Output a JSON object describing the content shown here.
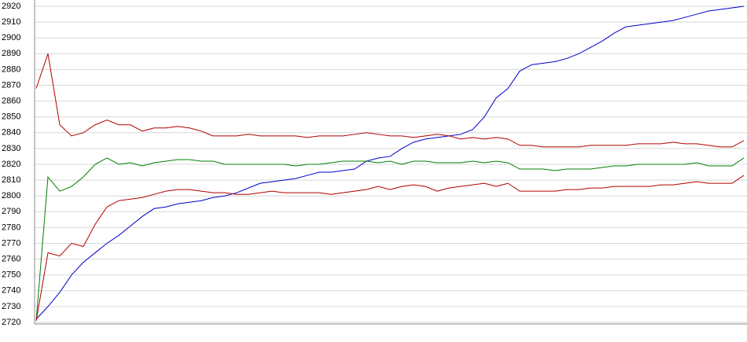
{
  "chart_data": {
    "type": "line",
    "ylim": [
      2720,
      2920
    ],
    "yticks": [
      2720,
      2730,
      2740,
      2750,
      2760,
      2770,
      2780,
      2790,
      2800,
      2810,
      2820,
      2830,
      2840,
      2850,
      2860,
      2870,
      2880,
      2890,
      2900,
      2910,
      2920
    ],
    "grid": true,
    "series": [
      {
        "color": "#0000cc",
        "values": [
          2722,
          2730,
          2739,
          2750,
          2758,
          2764,
          2770,
          2775,
          2781,
          2787,
          2792,
          2793,
          2795,
          2796,
          2797,
          2799,
          2800,
          2802,
          2805,
          2808,
          2809,
          2810,
          2811,
          2813,
          2815,
          2815,
          2816,
          2817,
          2822,
          2824,
          2825,
          2830,
          2834,
          2836,
          2837,
          2838,
          2839,
          2842,
          2850,
          2862,
          2868,
          2879,
          2883,
          2884,
          2885,
          2887,
          2890,
          2894,
          2898,
          2903,
          2907,
          2908,
          2909,
          2910,
          2911,
          2913,
          2915,
          2917,
          2918,
          2919,
          2920
        ]
      },
      {
        "color": "#008000",
        "values": [
          2721,
          2812,
          2803,
          2806,
          2812,
          2820,
          2824,
          2820,
          2821,
          2819,
          2821,
          2822,
          2823,
          2823,
          2822,
          2822,
          2820,
          2820,
          2820,
          2820,
          2820,
          2820,
          2819,
          2820,
          2820,
          2821,
          2822,
          2822,
          2822,
          2821,
          2822,
          2820,
          2822,
          2822,
          2821,
          2821,
          2821,
          2822,
          2821,
          2822,
          2821,
          2817,
          2817,
          2817,
          2816,
          2817,
          2817,
          2817,
          2818,
          2819,
          2819,
          2820,
          2820,
          2820,
          2820,
          2820,
          2821,
          2819,
          2819,
          2819,
          2824
        ]
      },
      {
        "color": "#b00000",
        "values": [
          2868,
          2890,
          2845,
          2838,
          2840,
          2845,
          2848,
          2845,
          2845,
          2841,
          2843,
          2843,
          2844,
          2843,
          2841,
          2838,
          2838,
          2838,
          2839,
          2838,
          2838,
          2838,
          2838,
          2837,
          2838,
          2838,
          2838,
          2839,
          2840,
          2839,
          2838,
          2838,
          2837,
          2838,
          2839,
          2838,
          2836,
          2837,
          2836,
          2837,
          2836,
          2832,
          2832,
          2831,
          2831,
          2831,
          2831,
          2832,
          2832,
          2832,
          2832,
          2833,
          2833,
          2833,
          2834,
          2833,
          2833,
          2832,
          2831,
          2831,
          2835
        ]
      },
      {
        "color": "#b00000",
        "values": [
          2721,
          2764,
          2762,
          2770,
          2768,
          2782,
          2793,
          2797,
          2798,
          2799,
          2801,
          2803,
          2804,
          2804,
          2803,
          2802,
          2802,
          2801,
          2801,
          2802,
          2803,
          2802,
          2802,
          2802,
          2802,
          2801,
          2802,
          2803,
          2804,
          2806,
          2804,
          2806,
          2807,
          2806,
          2803,
          2805,
          2806,
          2807,
          2808,
          2806,
          2808,
          2803,
          2803,
          2803,
          2803,
          2804,
          2804,
          2805,
          2805,
          2806,
          2806,
          2806,
          2806,
          2807,
          2807,
          2808,
          2809,
          2808,
          2808,
          2808,
          2813
        ]
      }
    ]
  }
}
